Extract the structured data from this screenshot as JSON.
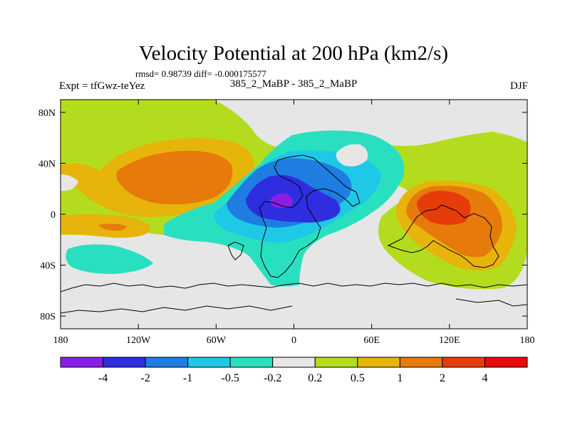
{
  "chart_data": {
    "type": "heatmap",
    "title": "Velocity Potential at 200 hPa (km2/s)",
    "subtitle": "rmsd= 0.98739 diff= -0.000175577",
    "left_label": "Expt = tfGwz-teYez",
    "center_label": "385_2_MaBP - 385_2_MaBP",
    "right_label": "DJF",
    "x_ticks": [
      "180",
      "120W",
      "60W",
      "0",
      "60E",
      "120E",
      "180"
    ],
    "x_tick_values": [
      -180,
      -120,
      -60,
      0,
      60,
      120,
      180
    ],
    "y_ticks": [
      "80N",
      "40N",
      "0",
      "40S",
      "80S"
    ],
    "y_tick_values": [
      80,
      40,
      0,
      -40,
      -80
    ],
    "xlim": [
      -180,
      180
    ],
    "ylim": [
      -90,
      90
    ],
    "colorbar": {
      "colors": [
        "#8a1ee6",
        "#2e2ee0",
        "#1e7de0",
        "#1ec8e6",
        "#28e0c0",
        "#e6e6e6",
        "#b4dc1e",
        "#e6b40a",
        "#e67a0a",
        "#e63c0a",
        "#e60a0a"
      ],
      "labels": [
        "-4",
        "-2",
        "-1",
        "-0.5",
        "-0.2",
        "0.2",
        "0.5",
        "1",
        "2",
        "4"
      ]
    },
    "regions": [
      {
        "name": "north-band-positive",
        "level": "0.2",
        "lon": -150,
        "lat": 50
      },
      {
        "name": "north-pacific-max",
        "level": "1",
        "lon": -110,
        "lat": 30
      },
      {
        "name": "south-pacific-positive",
        "level": "0.5",
        "lon": -140,
        "lat": -15
      },
      {
        "name": "south-pacific-negative",
        "level": "-0.2",
        "lon": -145,
        "lat": -40
      },
      {
        "name": "atlantic-africa-low",
        "level": "-4",
        "lon": -10,
        "lat": 5
      },
      {
        "name": "maritime-continent-high",
        "level": "2",
        "lon": 120,
        "lat": 0
      }
    ]
  }
}
